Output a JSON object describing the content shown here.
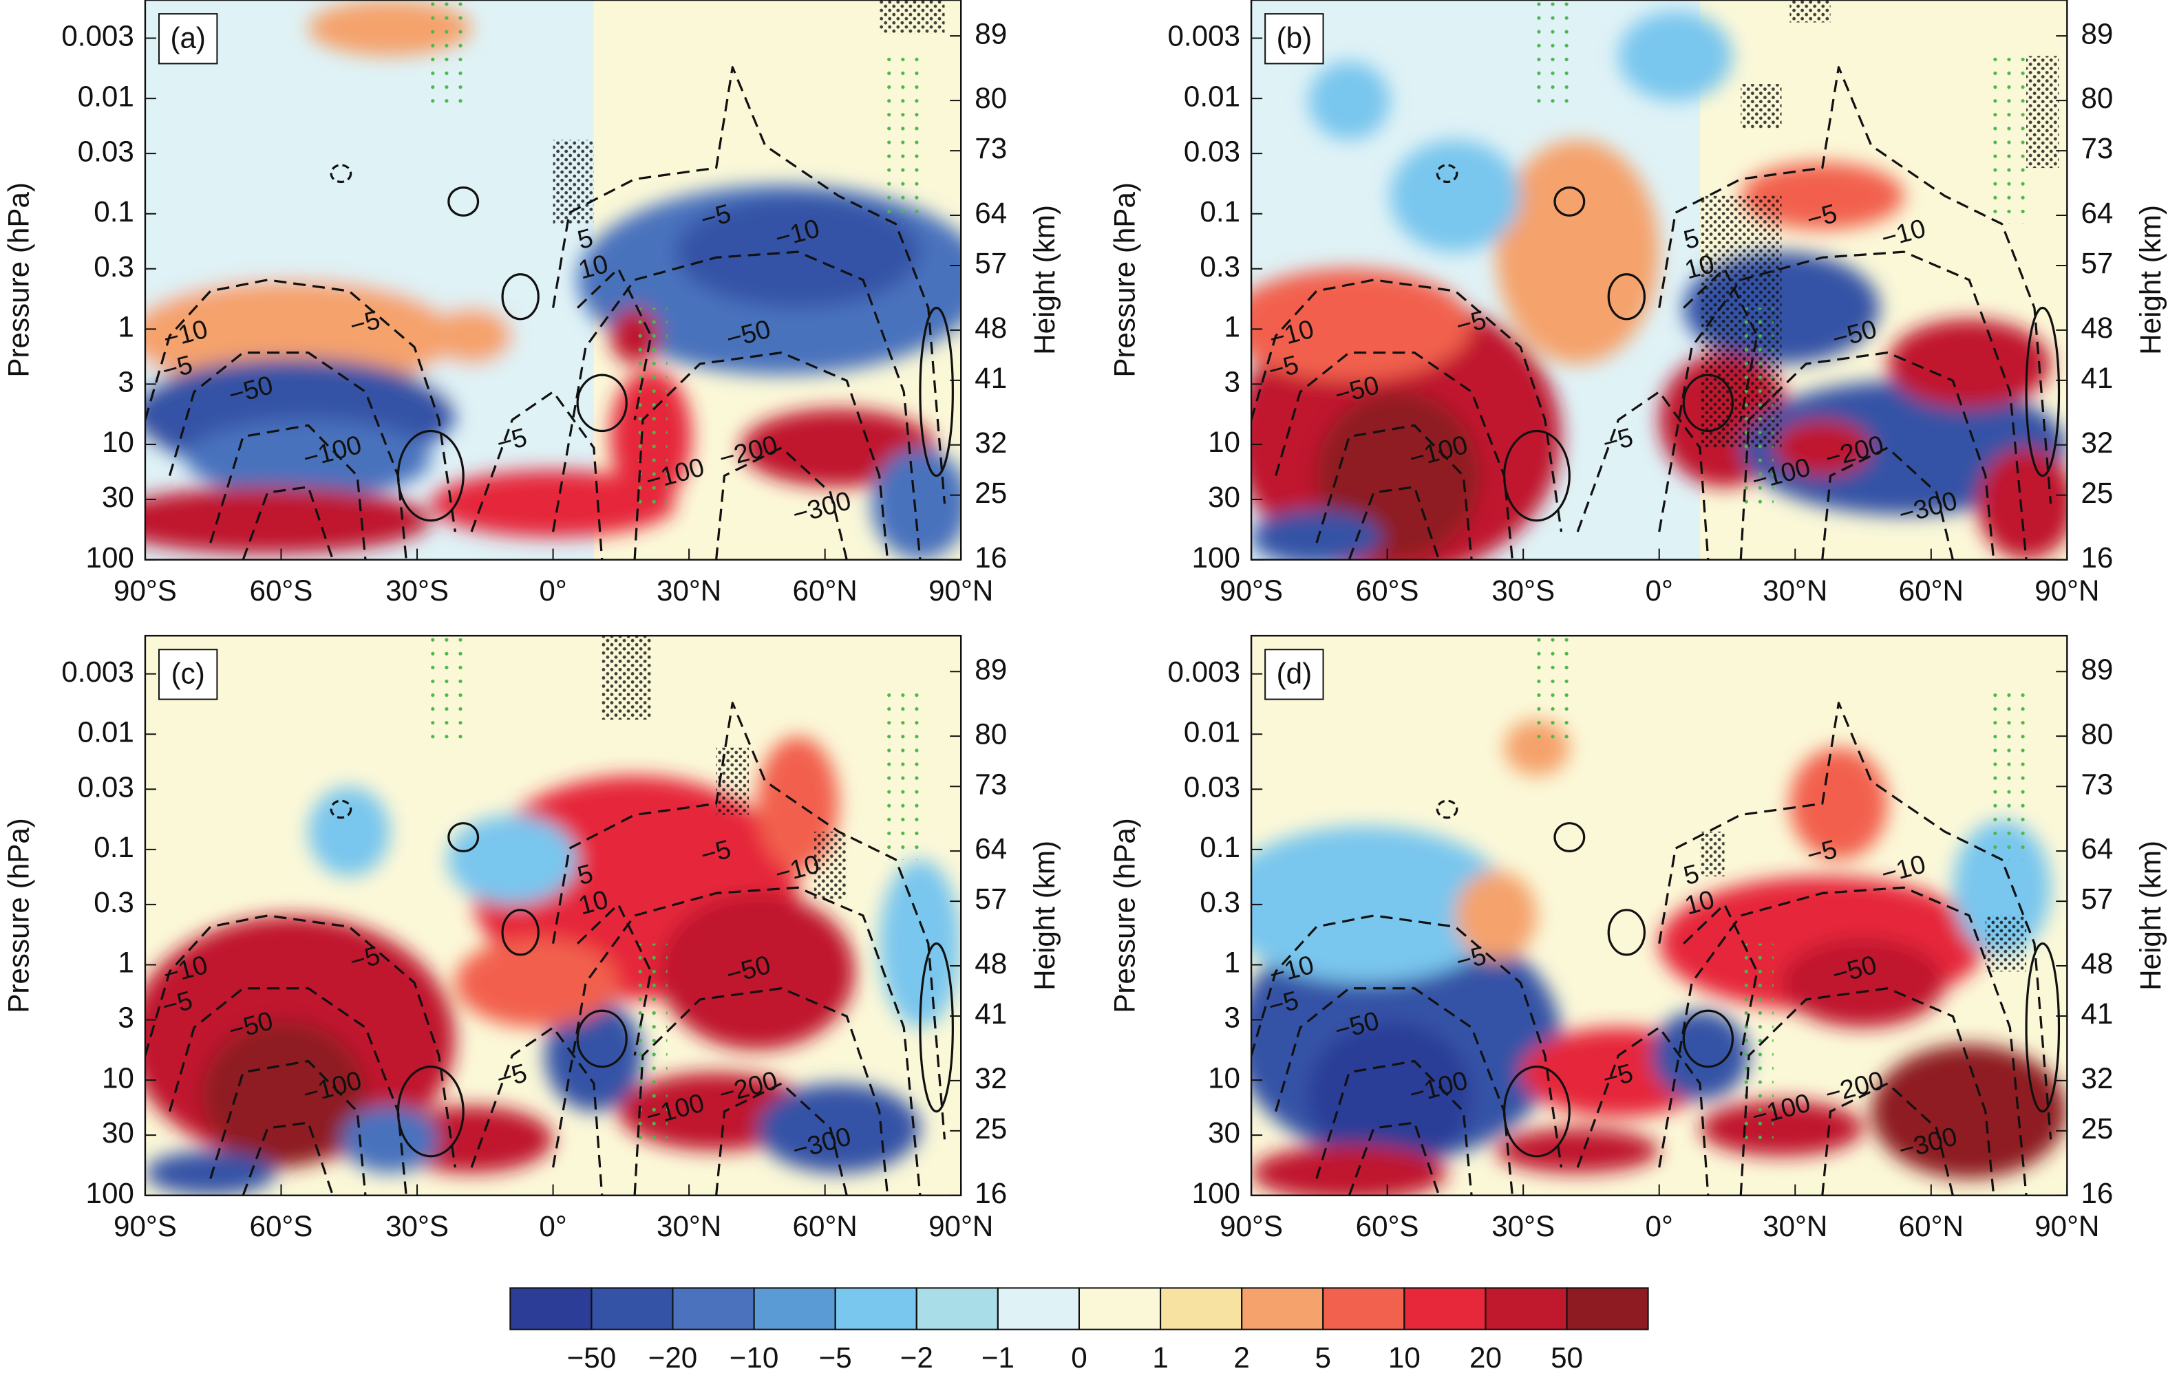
{
  "chart_data": [
    {
      "type": "contour",
      "title": "(a)",
      "ylabel": "Pressure (hPa)",
      "y2label": "Height (km)",
      "xlim": [
        -90,
        90
      ],
      "xticks": [
        {
          "value": -90,
          "label": "90°S"
        },
        {
          "value": -60,
          "label": "60°S"
        },
        {
          "value": -30,
          "label": "30°S"
        },
        {
          "value": 0,
          "label": "0°"
        },
        {
          "value": 30,
          "label": "30°N"
        },
        {
          "value": 60,
          "label": "60°N"
        },
        {
          "value": 90,
          "label": "90°N"
        }
      ],
      "ylim": [
        100,
        0.0014
      ],
      "log_y": true,
      "yticks": [
        100,
        30,
        10,
        3,
        1,
        0.3,
        0.1,
        0.03,
        0.01,
        0.003
      ],
      "y2lim": [
        16,
        94
      ],
      "y2ticks": [
        16,
        25,
        32,
        41,
        48,
        57,
        64,
        73,
        80,
        89
      ],
      "contour_labels": [
        "−10",
        "−5",
        "−50",
        "−5",
        "−100",
        "−5",
        "−10",
        "−50",
        "−200",
        "−300",
        "−5",
        "5",
        "10",
        "−100"
      ]
    },
    {
      "type": "contour",
      "title": "(b)",
      "ylabel": "Pressure (hPa)",
      "y2label": "Height (km)",
      "xlim": [
        -90,
        90
      ],
      "xticks": [
        {
          "value": -90,
          "label": "90°S"
        },
        {
          "value": -60,
          "label": "60°S"
        },
        {
          "value": -30,
          "label": "30°S"
        },
        {
          "value": 0,
          "label": "0°"
        },
        {
          "value": 30,
          "label": "30°N"
        },
        {
          "value": 60,
          "label": "60°N"
        },
        {
          "value": 90,
          "label": "90°N"
        }
      ],
      "ylim": [
        100,
        0.0014
      ],
      "log_y": true,
      "yticks": [
        100,
        30,
        10,
        3,
        1,
        0.3,
        0.1,
        0.03,
        0.01,
        0.003
      ],
      "y2lim": [
        16,
        94
      ],
      "y2ticks": [
        16,
        25,
        32,
        41,
        48,
        57,
        64,
        73,
        80,
        89
      ],
      "contour_labels": [
        "−10",
        "−5",
        "−50",
        "−5",
        "−100",
        "−5",
        "−10",
        "−50",
        "−200",
        "−300",
        "−5",
        "5",
        "10",
        "−100"
      ]
    },
    {
      "type": "contour",
      "title": "(c)",
      "ylabel": "Pressure (hPa)",
      "y2label": "Height (km)",
      "xlim": [
        -90,
        90
      ],
      "xticks": [
        {
          "value": -90,
          "label": "90°S"
        },
        {
          "value": -60,
          "label": "60°S"
        },
        {
          "value": -30,
          "label": "30°S"
        },
        {
          "value": 0,
          "label": "0°"
        },
        {
          "value": 30,
          "label": "30°N"
        },
        {
          "value": 60,
          "label": "60°N"
        },
        {
          "value": 90,
          "label": "90°N"
        }
      ],
      "ylim": [
        100,
        0.0014
      ],
      "log_y": true,
      "yticks": [
        100,
        30,
        10,
        3,
        1,
        0.3,
        0.1,
        0.03,
        0.01,
        0.003
      ],
      "y2lim": [
        16,
        94
      ],
      "y2ticks": [
        16,
        25,
        32,
        41,
        48,
        57,
        64,
        73,
        80,
        89
      ],
      "contour_labels": [
        "−10",
        "−5",
        "−50",
        "−5",
        "−100",
        "−5",
        "−10",
        "−50",
        "−200",
        "−300",
        "−5",
        "5",
        "10",
        "−100"
      ]
    },
    {
      "type": "contour",
      "title": "(d)",
      "ylabel": "Pressure (hPa)",
      "y2label": "Height (km)",
      "xlim": [
        -90,
        90
      ],
      "xticks": [
        {
          "value": -90,
          "label": "90°S"
        },
        {
          "value": -60,
          "label": "60°S"
        },
        {
          "value": -30,
          "label": "30°S"
        },
        {
          "value": 0,
          "label": "0°"
        },
        {
          "value": 30,
          "label": "30°N"
        },
        {
          "value": 60,
          "label": "60°N"
        },
        {
          "value": 90,
          "label": "90°N"
        }
      ],
      "ylim": [
        100,
        0.0014
      ],
      "log_y": true,
      "yticks": [
        100,
        30,
        10,
        3,
        1,
        0.3,
        0.1,
        0.03,
        0.01,
        0.003
      ],
      "y2lim": [
        16,
        94
      ],
      "y2ticks": [
        16,
        25,
        32,
        41,
        48,
        57,
        64,
        73,
        80,
        89
      ],
      "contour_labels": [
        "−10",
        "−5",
        "−50",
        "−5",
        "−100",
        "−5",
        "−10",
        "−50",
        "−200",
        "−300",
        "−5",
        "5",
        "10",
        "−100"
      ]
    }
  ],
  "colorbar": {
    "colors": [
      "#2c3d97",
      "#3452a6",
      "#4a72bd",
      "#5b9bd5",
      "#79c6ee",
      "#a9dde7",
      "#dff2f6",
      "#fbf8d8",
      "#f8e2a1",
      "#f5a26c",
      "#f2614d",
      "#e6283a",
      "#c0182d",
      "#8e1a22"
    ],
    "ticks": [
      {
        "value": -50,
        "label": "−50"
      },
      {
        "value": -20,
        "label": "−20"
      },
      {
        "value": -10,
        "label": "−10"
      },
      {
        "value": -5,
        "label": "−5"
      },
      {
        "value": -2,
        "label": "−2"
      },
      {
        "value": -1,
        "label": "−1"
      },
      0,
      1,
      2,
      5,
      10,
      20,
      50
    ]
  }
}
